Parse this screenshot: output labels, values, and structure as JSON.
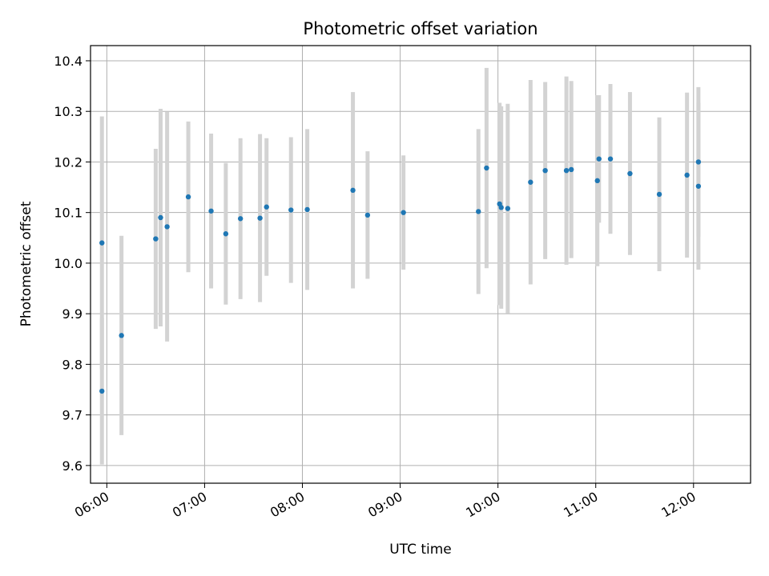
{
  "chart_data": {
    "type": "scatter",
    "title": "Photometric offset variation",
    "xlabel": "UTC time",
    "ylabel": "Photometric offset",
    "x_tick_labels": [
      "06:00",
      "07:00",
      "08:00",
      "09:00",
      "10:00",
      "11:00",
      "12:00"
    ],
    "x_tick_values": [
      "06:00",
      "07:00",
      "08:00",
      "09:00",
      "10:00",
      "11:00",
      "12:00"
    ],
    "y_tick_labels": [
      "9.6",
      "9.7",
      "9.8",
      "9.9",
      "10.0",
      "10.1",
      "10.2",
      "10.3",
      "10.4"
    ],
    "y_tick_values": [
      9.6,
      9.7,
      9.8,
      9.9,
      10.0,
      10.1,
      10.2,
      10.3,
      10.4
    ],
    "xlim": [
      "05:50",
      "12:35"
    ],
    "ylim": [
      9.565,
      10.43
    ],
    "grid": true,
    "colors": {
      "points": "#1f77b4",
      "error_bars": "#d3d3d3",
      "grid": "#b0b0b0"
    },
    "points": [
      {
        "x": "05:57",
        "y": 10.04,
        "err": 0.25
      },
      {
        "x": "05:57",
        "y": 9.747,
        "err": 0.145
      },
      {
        "x": "06:09",
        "y": 9.857,
        "err": 0.197
      },
      {
        "x": "06:30",
        "y": 10.048,
        "err": 0.178
      },
      {
        "x": "06:33",
        "y": 10.09,
        "err": 0.215
      },
      {
        "x": "06:37",
        "y": 10.072,
        "err": 0.227
      },
      {
        "x": "06:50",
        "y": 10.131,
        "err": 0.149
      },
      {
        "x": "07:04",
        "y": 10.103,
        "err": 0.153
      },
      {
        "x": "07:13",
        "y": 10.058,
        "err": 0.14
      },
      {
        "x": "07:22",
        "y": 10.088,
        "err": 0.159
      },
      {
        "x": "07:34",
        "y": 10.089,
        "err": 0.166
      },
      {
        "x": "07:38",
        "y": 10.111,
        "err": 0.136
      },
      {
        "x": "07:53",
        "y": 10.105,
        "err": 0.144
      },
      {
        "x": "08:03",
        "y": 10.106,
        "err": 0.159
      },
      {
        "x": "08:31",
        "y": 10.144,
        "err": 0.194
      },
      {
        "x": "08:40",
        "y": 10.095,
        "err": 0.126
      },
      {
        "x": "09:02",
        "y": 10.1,
        "err": 0.113
      },
      {
        "x": "09:48",
        "y": 10.102,
        "err": 0.163
      },
      {
        "x": "09:53",
        "y": 10.188,
        "err": 0.198
      },
      {
        "x": "10:01",
        "y": 10.117,
        "err": 0.2
      },
      {
        "x": "10:02",
        "y": 10.11,
        "err": 0.2
      },
      {
        "x": "10:06",
        "y": 10.108,
        "err": 0.207
      },
      {
        "x": "10:20",
        "y": 10.16,
        "err": 0.202
      },
      {
        "x": "10:29",
        "y": 10.183,
        "err": 0.175
      },
      {
        "x": "10:42",
        "y": 10.183,
        "err": 0.186
      },
      {
        "x": "10:45",
        "y": 10.185,
        "err": 0.175
      },
      {
        "x": "11:01",
        "y": 10.163,
        "err": 0.169
      },
      {
        "x": "11:02",
        "y": 10.206,
        "err": 0.126
      },
      {
        "x": "11:09",
        "y": 10.206,
        "err": 0.148
      },
      {
        "x": "11:21",
        "y": 10.177,
        "err": 0.161
      },
      {
        "x": "11:39",
        "y": 10.136,
        "err": 0.152
      },
      {
        "x": "11:56",
        "y": 10.174,
        "err": 0.163
      },
      {
        "x": "12:03",
        "y": 10.2,
        "err": 0.148
      },
      {
        "x": "12:03",
        "y": 10.152,
        "err": 0.165
      }
    ]
  }
}
